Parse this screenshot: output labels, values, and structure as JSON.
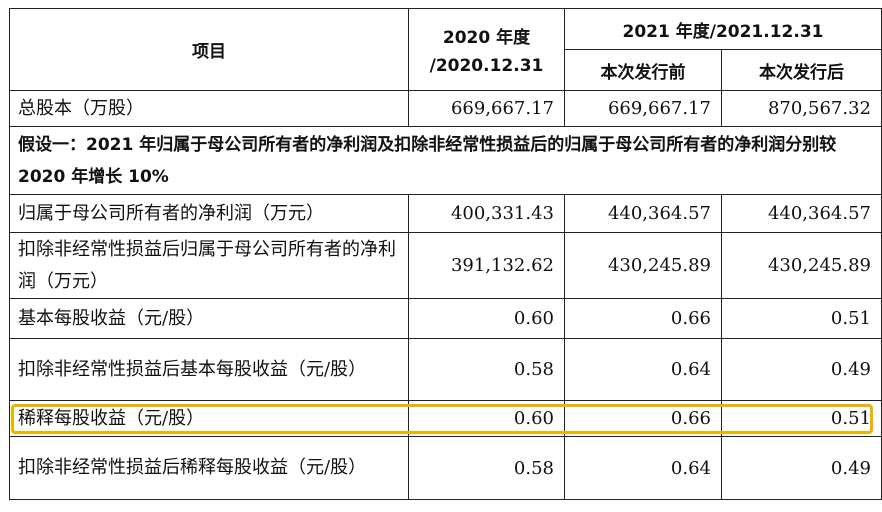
{
  "header": {
    "item": "项目",
    "col2020_line1": "2020 年度",
    "col2020_line2": "/2020.12.31",
    "col2021": "2021 年度/2021.12.31",
    "before": "本次发行前",
    "after": "本次发行后"
  },
  "rows": [
    {
      "label": "总股本（万股）",
      "v2020": "669,667.17",
      "before": "669,667.17",
      "after": "870,567.32"
    },
    {
      "label": "归属于母公司所有者的净利润（万元）",
      "v2020": "400,331.43",
      "before": "440,364.57",
      "after": "440,364.57"
    },
    {
      "label": "扣除非经常性损益后归属于母公司所有者的净利润（万元）",
      "v2020": "391,132.62",
      "before": "430,245.89",
      "after": "430,245.89"
    },
    {
      "label": "基本每股收益（元/股）",
      "v2020": "0.60",
      "before": "0.66",
      "after": "0.51"
    },
    {
      "label": "扣除非经常性损益后基本每股收益（元/股）",
      "v2020": "0.58",
      "before": "0.64",
      "after": "0.49"
    },
    {
      "label": "稀释每股收益（元/股）",
      "v2020": "0.60",
      "before": "0.66",
      "after": "0.51"
    },
    {
      "label": "扣除非经常性损益后稀释每股收益（元/股）",
      "v2020": "0.58",
      "before": "0.64",
      "after": "0.49"
    }
  ],
  "assumption": "假设一：2021 年归属于母公司所有者的净利润及扣除非经常性损益后的归属于母公司所有者的净利润分别较 2020 年增长 10%",
  "highlight_color": "#f0b400"
}
